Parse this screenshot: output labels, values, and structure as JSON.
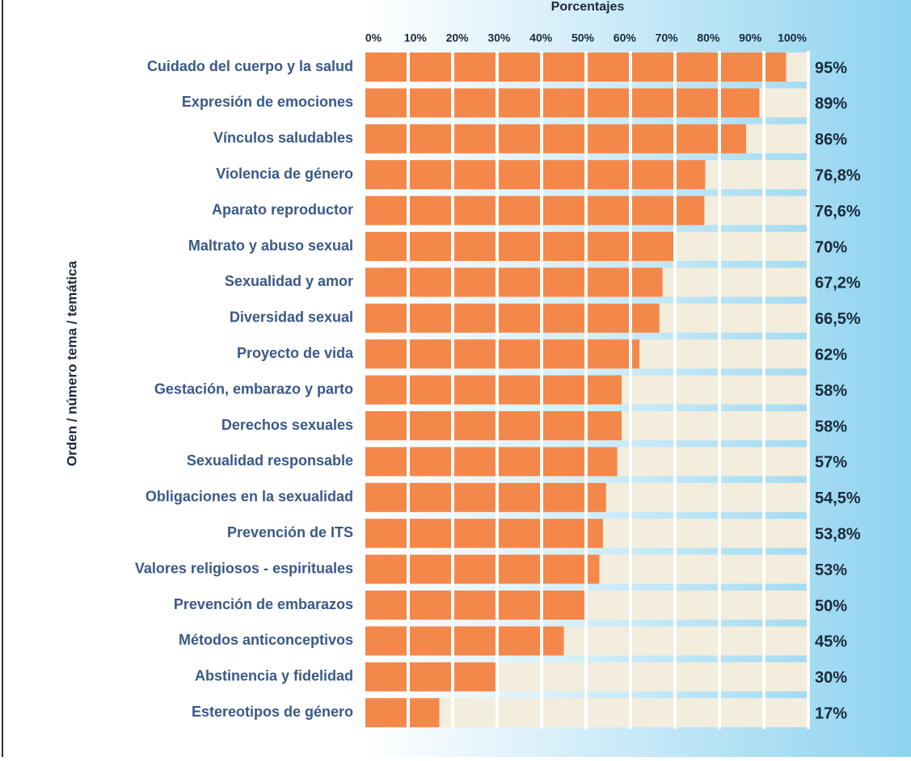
{
  "chart_data": {
    "type": "bar",
    "orientation": "horizontal",
    "x_label": "Porcentajes",
    "y_label": "Orden / número tema / temática",
    "categories": [
      "Cuidado del cuerpo y la salud",
      "Expresión de emociones",
      "Vínculos saludables",
      "Violencia de género",
      "Aparato reproductor",
      "Maltrato y abuso sexual",
      "Sexualidad y amor",
      "Diversidad sexual",
      "Proyecto de vida",
      "Gestación, embarazo y parto",
      "Derechos sexuales",
      "Sexualidad responsable",
      "Obligaciones en la sexualidad",
      "Prevención de ITS",
      "Valores religiosos - espirituales",
      "Prevención de embarazos",
      "Métodos anticonceptivos",
      "Abstinencia y fidelidad",
      "Estereotipos de género"
    ],
    "values": [
      95,
      89,
      86,
      76.8,
      76.6,
      70,
      67.2,
      66.5,
      62,
      58,
      58,
      57,
      54.5,
      53.8,
      53,
      50,
      45,
      30,
      17
    ],
    "value_labels": [
      "95%",
      "89%",
      "86%",
      "76,8%",
      "76,6%",
      "70%",
      "67,2%",
      "66,5%",
      "62%",
      "58%",
      "58%",
      "57%",
      "54,5%",
      "53,8%",
      "53%",
      "50%",
      "45%",
      "30%",
      "17%"
    ],
    "color": "#f4884b",
    "track_color": "#f2eddc",
    "xlim": [
      0,
      100
    ],
    "xticks": [
      {
        "value": 0,
        "label": "0%"
      },
      {
        "value": 10,
        "label": "10%"
      },
      {
        "value": 20,
        "label": "20%"
      },
      {
        "value": 30,
        "label": "30%"
      },
      {
        "value": 40,
        "label": "40%"
      },
      {
        "value": 50,
        "label": "50%"
      },
      {
        "value": 60,
        "label": "60%"
      },
      {
        "value": 70,
        "label": "70%"
      },
      {
        "value": 80,
        "label": "80%"
      },
      {
        "value": 90,
        "label": "90%"
      },
      {
        "value": 100,
        "label": "100%"
      }
    ],
    "grid": true
  }
}
